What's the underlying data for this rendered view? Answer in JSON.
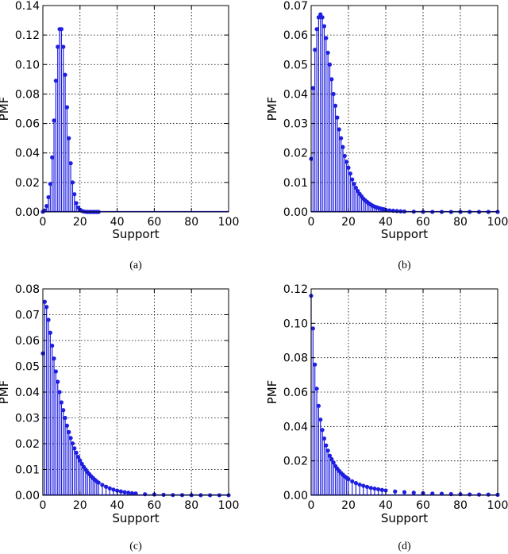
{
  "chart_data": [
    {
      "type": "stem",
      "caption": "(a)",
      "xlabel": "Support",
      "ylabel": "PMF",
      "xlim": [
        0,
        100
      ],
      "ylim": [
        0,
        0.14
      ],
      "xticks": [
        0,
        20,
        40,
        60,
        80,
        100
      ],
      "yticks": [
        0.0,
        0.02,
        0.04,
        0.06,
        0.08,
        0.1,
        0.12,
        0.14
      ],
      "grid": true,
      "color": "#1f1fe0",
      "x": [
        0,
        1,
        2,
        3,
        4,
        5,
        6,
        7,
        8,
        9,
        10,
        11,
        12,
        13,
        14,
        15,
        16,
        17,
        18,
        19,
        20,
        21,
        22,
        23,
        24,
        25,
        26,
        27,
        28,
        29,
        30
      ],
      "values": [
        0.0001,
        0.001,
        0.004,
        0.01,
        0.019,
        0.037,
        0.062,
        0.089,
        0.112,
        0.124,
        0.124,
        0.112,
        0.093,
        0.071,
        0.05,
        0.033,
        0.02,
        0.012,
        0.006,
        0.003,
        0.0015,
        0.0007,
        0.0003,
        0.0001,
        0,
        0,
        0,
        0,
        0,
        0,
        0
      ]
    },
    {
      "type": "stem",
      "caption": "(b)",
      "xlabel": "Support",
      "ylabel": "PMF",
      "xlim": [
        0,
        100
      ],
      "ylim": [
        0,
        0.07
      ],
      "xticks": [
        0,
        20,
        40,
        60,
        80,
        100
      ],
      "yticks": [
        0.0,
        0.01,
        0.02,
        0.03,
        0.04,
        0.05,
        0.06,
        0.07
      ],
      "grid": true,
      "color": "#1f1fe0",
      "x": [
        0,
        1,
        2,
        3,
        4,
        5,
        6,
        7,
        8,
        9,
        10,
        11,
        12,
        13,
        14,
        15,
        16,
        17,
        18,
        19,
        20,
        21,
        22,
        23,
        24,
        25,
        26,
        27,
        28,
        29,
        30,
        31,
        32,
        33,
        34,
        35,
        36,
        37,
        38,
        39,
        40,
        42,
        44,
        46,
        48,
        50,
        55,
        60,
        65,
        70,
        75,
        80,
        85,
        90,
        95,
        100
      ],
      "values": [
        0.018,
        0.042,
        0.055,
        0.062,
        0.066,
        0.067,
        0.066,
        0.063,
        0.059,
        0.054,
        0.05,
        0.045,
        0.04,
        0.036,
        0.032,
        0.028,
        0.025,
        0.022,
        0.019,
        0.017,
        0.015,
        0.013,
        0.011,
        0.0095,
        0.0082,
        0.0071,
        0.0061,
        0.0053,
        0.0045,
        0.0039,
        0.0034,
        0.0029,
        0.0025,
        0.0021,
        0.0018,
        0.0016,
        0.0014,
        0.0012,
        0.001,
        0.0009,
        0.0007,
        0.0005,
        0.0004,
        0.0003,
        0.0002,
        0.00015,
        8e-05,
        4e-05,
        2e-05,
        1e-05,
        5e-06,
        3e-06,
        2e-06,
        1e-06,
        0,
        0
      ]
    },
    {
      "type": "stem",
      "caption": "(c)",
      "xlabel": "Support",
      "ylabel": "PMF",
      "xlim": [
        0,
        100
      ],
      "ylim": [
        0,
        0.08
      ],
      "xticks": [
        0,
        20,
        40,
        60,
        80,
        100
      ],
      "yticks": [
        0.0,
        0.01,
        0.02,
        0.03,
        0.04,
        0.05,
        0.06,
        0.07,
        0.08
      ],
      "grid": true,
      "color": "#1f1fe0",
      "x": [
        0,
        1,
        2,
        3,
        4,
        5,
        6,
        7,
        8,
        9,
        10,
        11,
        12,
        13,
        14,
        15,
        16,
        17,
        18,
        19,
        20,
        21,
        22,
        23,
        24,
        25,
        26,
        27,
        28,
        29,
        30,
        32,
        34,
        36,
        38,
        40,
        42,
        44,
        46,
        48,
        50,
        55,
        60,
        65,
        70,
        75,
        80,
        85,
        90,
        95,
        100
      ],
      "values": [
        0.055,
        0.075,
        0.073,
        0.068,
        0.063,
        0.058,
        0.053,
        0.048,
        0.044,
        0.04,
        0.036,
        0.033,
        0.03,
        0.027,
        0.0245,
        0.0222,
        0.0201,
        0.0182,
        0.0165,
        0.0149,
        0.0135,
        0.0122,
        0.011,
        0.01,
        0.009,
        0.0082,
        0.0074,
        0.0067,
        0.006,
        0.0054,
        0.0049,
        0.004,
        0.0033,
        0.0027,
        0.0022,
        0.0018,
        0.0015,
        0.0012,
        0.001,
        0.0008,
        0.0007,
        0.0004,
        0.0003,
        0.0002,
        0.0001,
        8e-05,
        5e-05,
        3e-05,
        2e-05,
        1e-05,
        1e-05
      ]
    },
    {
      "type": "stem",
      "caption": "(d)",
      "xlabel": "Support",
      "ylabel": "PMF",
      "xlim": [
        0,
        100
      ],
      "ylim": [
        0,
        0.12
      ],
      "xticks": [
        0,
        20,
        40,
        60,
        80,
        100
      ],
      "yticks": [
        0.0,
        0.02,
        0.04,
        0.06,
        0.08,
        0.1,
        0.12
      ],
      "grid": true,
      "color": "#1f1fe0",
      "x": [
        0,
        1,
        2,
        3,
        4,
        5,
        6,
        7,
        8,
        9,
        10,
        11,
        12,
        13,
        14,
        15,
        16,
        17,
        18,
        19,
        20,
        22,
        24,
        26,
        28,
        30,
        32,
        34,
        36,
        38,
        40,
        45,
        50,
        55,
        60,
        65,
        70,
        75,
        80,
        85,
        90,
        95,
        100
      ],
      "values": [
        0.116,
        0.097,
        0.076,
        0.062,
        0.052,
        0.044,
        0.038,
        0.033,
        0.029,
        0.026,
        0.023,
        0.021,
        0.019,
        0.017,
        0.0155,
        0.0142,
        0.013,
        0.012,
        0.011,
        0.0102,
        0.0094,
        0.0081,
        0.0071,
        0.0062,
        0.0055,
        0.0049,
        0.0043,
        0.0039,
        0.0035,
        0.0031,
        0.0028,
        0.0022,
        0.0018,
        0.0015,
        0.0012,
        0.001,
        0.0009,
        0.0007,
        0.0006,
        0.0005,
        0.0004,
        0.0004,
        0.0003
      ]
    }
  ]
}
